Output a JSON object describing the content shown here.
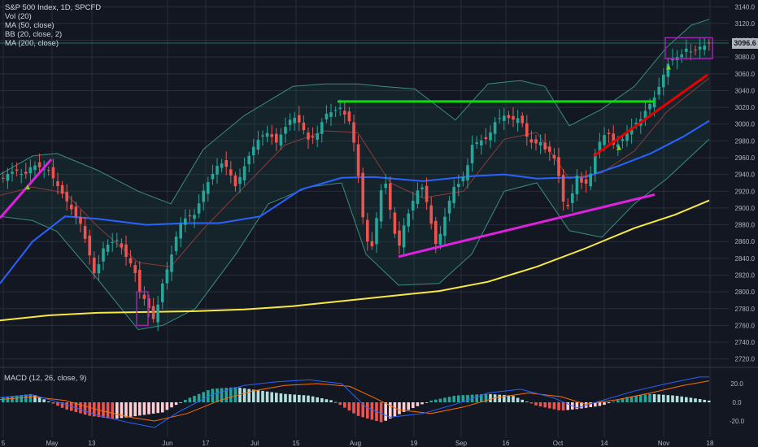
{
  "legend": {
    "title": "S&P 500 Index, 1D, SPCFD",
    "vol": "Vol (20)",
    "ma50": "MA (50, close)",
    "bb": "BB (20, close, 2)",
    "ma200": "MA (200, close)"
  },
  "macd_label": "MACD (12, 26, close, 9)",
  "last_price_label": "3096.6",
  "colors": {
    "background": "#131722",
    "grid": "#2a2e39",
    "up": "#26a69a",
    "down": "#ef5350",
    "ma50": "#2962ff",
    "ma200": "#f7e845",
    "bb": "#3a8c80",
    "bb_basis": "#8b3b3b",
    "green_line": "#00e600",
    "red_line": "#e60000",
    "magenta_line": "#e020e0",
    "box": "#9c27b0",
    "macd_line": "#2962ff",
    "signal_line": "#ff6d00"
  },
  "chart_data": {
    "type": "candlestick",
    "title": "S&P 500 Index, 1D, SPCFD",
    "x_ticks": [
      "5",
      "May",
      "13",
      "Jun",
      "17",
      "Jul",
      "15",
      "Aug",
      "19",
      "Sep",
      "16",
      "Oct",
      "14",
      "Nov",
      "18"
    ],
    "y_ticks": [
      2720,
      2740,
      2760,
      2780,
      2800,
      2820,
      2840,
      2860,
      2880,
      2900,
      2920,
      2940,
      2960,
      2980,
      3000,
      3020,
      3040,
      3060,
      3080,
      3100,
      3120,
      3140
    ],
    "ylim": [
      2710,
      3148
    ],
    "last_price": 3096.6,
    "close_path": [
      [
        0,
        2932
      ],
      [
        10,
        2941
      ],
      [
        20,
        2945
      ],
      [
        30,
        2938
      ],
      [
        40,
        2952
      ],
      [
        50,
        2948
      ],
      [
        60,
        2945
      ],
      [
        70,
        2928
      ],
      [
        80,
        2912
      ],
      [
        90,
        2895
      ],
      [
        100,
        2880
      ],
      [
        110,
        2845
      ],
      [
        118,
        2815
      ],
      [
        125,
        2850
      ],
      [
        135,
        2858
      ],
      [
        145,
        2862
      ],
      [
        155,
        2842
      ],
      [
        165,
        2828
      ],
      [
        172,
        2800
      ],
      [
        180,
        2788
      ],
      [
        190,
        2765
      ],
      [
        200,
        2810
      ],
      [
        210,
        2840
      ],
      [
        220,
        2878
      ],
      [
        230,
        2890
      ],
      [
        240,
        2892
      ],
      [
        250,
        2920
      ],
      [
        260,
        2938
      ],
      [
        270,
        2955
      ],
      [
        280,
        2948
      ],
      [
        290,
        2925
      ],
      [
        300,
        2948
      ],
      [
        310,
        2970
      ],
      [
        320,
        2985
      ],
      [
        330,
        2990
      ],
      [
        340,
        2978
      ],
      [
        350,
        2995
      ],
      [
        360,
        3010
      ],
      [
        370,
        3000
      ],
      [
        380,
        2980
      ],
      [
        390,
        2988
      ],
      [
        400,
        3012
      ],
      [
        410,
        3015
      ],
      [
        418,
        3020
      ],
      [
        425,
        3010
      ],
      [
        432,
        3000
      ],
      [
        440,
        2945
      ],
      [
        448,
        2875
      ],
      [
        456,
        2845
      ],
      [
        462,
        2880
      ],
      [
        468,
        2920
      ],
      [
        475,
        2930
      ],
      [
        482,
        2885
      ],
      [
        490,
        2850
      ],
      [
        497,
        2880
      ],
      [
        505,
        2900
      ],
      [
        512,
        2920
      ],
      [
        520,
        2925
      ],
      [
        528,
        2895
      ],
      [
        535,
        2855
      ],
      [
        542,
        2870
      ],
      [
        550,
        2900
      ],
      [
        558,
        2925
      ],
      [
        566,
        2930
      ],
      [
        574,
        2945
      ],
      [
        580,
        2975
      ],
      [
        590,
        2980
      ],
      [
        600,
        2983
      ],
      [
        610,
        3005
      ],
      [
        620,
        3010
      ],
      [
        630,
        3005
      ],
      [
        640,
        3008
      ],
      [
        648,
        2985
      ],
      [
        656,
        2975
      ],
      [
        664,
        2980
      ],
      [
        670,
        2970
      ],
      [
        680,
        2965
      ],
      [
        688,
        2935
      ],
      [
        695,
        2895
      ],
      [
        702,
        2910
      ],
      [
        710,
        2940
      ],
      [
        718,
        2925
      ],
      [
        725,
        2935
      ],
      [
        732,
        2965
      ],
      [
        740,
        2985
      ],
      [
        748,
        2990
      ],
      [
        756,
        2972
      ],
      [
        764,
        2980
      ],
      [
        772,
        2990
      ],
      [
        780,
        3000
      ],
      [
        788,
        3006
      ],
      [
        796,
        3020
      ],
      [
        804,
        3030
      ],
      [
        812,
        3048
      ],
      [
        820,
        3070
      ],
      [
        828,
        3080
      ],
      [
        836,
        3080
      ],
      [
        844,
        3090
      ],
      [
        852,
        3085
      ],
      [
        860,
        3092
      ],
      [
        868,
        3094
      ],
      [
        872,
        3096.6
      ]
    ],
    "ma50_path": [
      [
        0,
        2810
      ],
      [
        40,
        2860
      ],
      [
        80,
        2890
      ],
      [
        120,
        2887
      ],
      [
        180,
        2880
      ],
      [
        230,
        2882
      ],
      [
        270,
        2882
      ],
      [
        320,
        2890
      ],
      [
        370,
        2922
      ],
      [
        420,
        2936
      ],
      [
        460,
        2937
      ],
      [
        520,
        2932
      ],
      [
        580,
        2938
      ],
      [
        620,
        2940
      ],
      [
        660,
        2935
      ],
      [
        720,
        2937
      ],
      [
        760,
        2950
      ],
      [
        800,
        2965
      ],
      [
        840,
        2985
      ],
      [
        872,
        3004
      ]
    ],
    "ma200_path": [
      [
        0,
        2766
      ],
      [
        60,
        2772
      ],
      [
        120,
        2775
      ],
      [
        180,
        2776
      ],
      [
        240,
        2777
      ],
      [
        300,
        2779
      ],
      [
        360,
        2783
      ],
      [
        420,
        2789
      ],
      [
        480,
        2795
      ],
      [
        540,
        2801
      ],
      [
        600,
        2812
      ],
      [
        660,
        2830
      ],
      [
        720,
        2852
      ],
      [
        780,
        2876
      ],
      [
        830,
        2892
      ],
      [
        872,
        2909
      ]
    ],
    "bb_upper_path": [
      [
        0,
        2940
      ],
      [
        40,
        2962
      ],
      [
        70,
        2965
      ],
      [
        120,
        2945
      ],
      [
        170,
        2920
      ],
      [
        210,
        2905
      ],
      [
        250,
        2970
      ],
      [
        300,
        3010
      ],
      [
        360,
        3045
      ],
      [
        400,
        3048
      ],
      [
        440,
        3048
      ],
      [
        470,
        3045
      ],
      [
        510,
        3042
      ],
      [
        560,
        3005
      ],
      [
        600,
        3048
      ],
      [
        640,
        3052
      ],
      [
        670,
        3045
      ],
      [
        700,
        2998
      ],
      [
        740,
        3018
      ],
      [
        780,
        3045
      ],
      [
        820,
        3092
      ],
      [
        850,
        3118
      ],
      [
        872,
        3125
      ]
    ],
    "bb_lower_path": [
      [
        0,
        2890
      ],
      [
        40,
        2885
      ],
      [
        70,
        2872
      ],
      [
        120,
        2815
      ],
      [
        170,
        2755
      ],
      [
        200,
        2760
      ],
      [
        240,
        2780
      ],
      [
        290,
        2845
      ],
      [
        330,
        2905
      ],
      [
        380,
        2925
      ],
      [
        420,
        2930
      ],
      [
        450,
        2845
      ],
      [
        490,
        2808
      ],
      [
        540,
        2810
      ],
      [
        580,
        2845
      ],
      [
        620,
        2920
      ],
      [
        660,
        2930
      ],
      [
        700,
        2873
      ],
      [
        740,
        2865
      ],
      [
        780,
        2905
      ],
      [
        820,
        2935
      ],
      [
        872,
        2982
      ]
    ],
    "bb_basis_path": [
      [
        0,
        2915
      ],
      [
        40,
        2925
      ],
      [
        80,
        2918
      ],
      [
        120,
        2878
      ],
      [
        170,
        2835
      ],
      [
        210,
        2830
      ],
      [
        250,
        2875
      ],
      [
        300,
        2925
      ],
      [
        350,
        2975
      ],
      [
        400,
        2992
      ],
      [
        440,
        2990
      ],
      [
        480,
        2930
      ],
      [
        520,
        2912
      ],
      [
        570,
        2920
      ],
      [
        620,
        2982
      ],
      [
        660,
        2990
      ],
      [
        700,
        2935
      ],
      [
        740,
        2942
      ],
      [
        780,
        2968
      ],
      [
        820,
        3015
      ],
      [
        872,
        3055
      ]
    ],
    "trendlines": [
      {
        "name": "resistance-green",
        "points": [
          [
            415,
            3027
          ],
          [
            805,
            3027
          ]
        ]
      },
      {
        "name": "channel-magenta-left",
        "points": [
          [
            0,
            2888
          ],
          [
            63,
            2958
          ]
        ]
      },
      {
        "name": "support-magenta",
        "points": [
          [
            490,
            2842
          ],
          [
            805,
            2916
          ]
        ]
      },
      {
        "name": "support-red",
        "points": [
          [
            730,
            2962
          ],
          [
            870,
            3059
          ]
        ]
      }
    ],
    "boxes": [
      {
        "name": "box-june",
        "x": [
          168,
          182
        ],
        "y": [
          2760,
          2800
        ]
      },
      {
        "name": "box-nov",
        "x": [
          818,
          876
        ],
        "y": [
          3078,
          3103
        ]
      }
    ],
    "markers": [
      [
        34,
        2925
      ],
      [
        761,
        2972
      ],
      [
        822,
        3068
      ]
    ],
    "macd": {
      "ylim": [
        -25,
        30
      ],
      "y_ticks": [
        -20.0,
        0.0,
        20.0
      ],
      "macd_path": [
        [
          0,
          5
        ],
        [
          40,
          8
        ],
        [
          80,
          -2
        ],
        [
          120,
          -14
        ],
        [
          160,
          -22
        ],
        [
          190,
          -27
        ],
        [
          220,
          -10
        ],
        [
          260,
          8
        ],
        [
          300,
          18
        ],
        [
          340,
          22
        ],
        [
          380,
          24
        ],
        [
          420,
          20
        ],
        [
          450,
          -5
        ],
        [
          480,
          -16
        ],
        [
          520,
          -12
        ],
        [
          560,
          -2
        ],
        [
          600,
          10
        ],
        [
          640,
          14
        ],
        [
          680,
          5
        ],
        [
          710,
          -6
        ],
        [
          740,
          2
        ],
        [
          780,
          12
        ],
        [
          820,
          20
        ],
        [
          860,
          27
        ],
        [
          872,
          27
        ]
      ],
      "signal_path": [
        [
          0,
          3
        ],
        [
          40,
          6
        ],
        [
          80,
          2
        ],
        [
          120,
          -8
        ],
        [
          160,
          -16
        ],
        [
          190,
          -20
        ],
        [
          230,
          -12
        ],
        [
          270,
          2
        ],
        [
          310,
          12
        ],
        [
          350,
          18
        ],
        [
          390,
          20
        ],
        [
          430,
          17
        ],
        [
          460,
          5
        ],
        [
          490,
          -8
        ],
        [
          530,
          -12
        ],
        [
          570,
          -5
        ],
        [
          610,
          5
        ],
        [
          650,
          10
        ],
        [
          690,
          6
        ],
        [
          720,
          -2
        ],
        [
          760,
          3
        ],
        [
          800,
          10
        ],
        [
          840,
          18
        ],
        [
          872,
          23
        ]
      ],
      "histogram_path": [
        [
          0,
          3
        ],
        [
          40,
          5
        ],
        [
          80,
          -4
        ],
        [
          110,
          -8
        ],
        [
          140,
          -10
        ],
        [
          170,
          -8
        ],
        [
          200,
          -6
        ],
        [
          230,
          2
        ],
        [
          260,
          8
        ],
        [
          290,
          9
        ],
        [
          320,
          7
        ],
        [
          350,
          5
        ],
        [
          380,
          4
        ],
        [
          410,
          1
        ],
        [
          440,
          -8
        ],
        [
          470,
          -12
        ],
        [
          500,
          -5
        ],
        [
          530,
          1
        ],
        [
          560,
          4
        ],
        [
          600,
          5
        ],
        [
          630,
          4
        ],
        [
          660,
          -2
        ],
        [
          690,
          -5
        ],
        [
          710,
          -4
        ],
        [
          740,
          -2
        ],
        [
          770,
          3
        ],
        [
          800,
          5
        ],
        [
          830,
          4
        ],
        [
          860,
          2
        ],
        [
          872,
          1
        ]
      ]
    }
  }
}
